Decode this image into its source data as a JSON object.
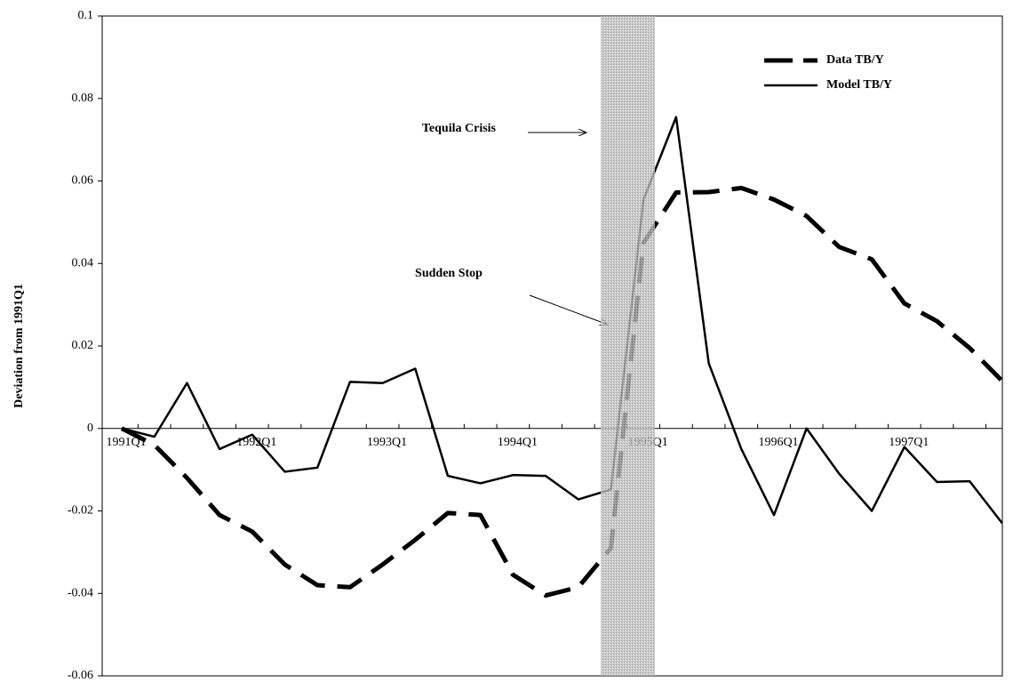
{
  "chart_data": {
    "type": "line",
    "y_label": "Deviation from 1991Q1",
    "categories": [
      "1991Q1",
      null,
      null,
      null,
      "1992Q1",
      null,
      null,
      null,
      "1993Q1",
      null,
      null,
      null,
      "1994Q1",
      null,
      null,
      null,
      "1995Q1",
      null,
      null,
      null,
      "1996Q1",
      null,
      null,
      null,
      "1997Q1",
      null,
      null,
      null
    ],
    "series": [
      {
        "name": "Data TB/Y",
        "color": "#000000",
        "style": "dashed",
        "values": [
          0,
          -0.004,
          -0.012,
          -0.021,
          -0.025,
          -0.033,
          -0.038,
          -0.0385,
          -0.033,
          -0.027,
          -0.0205,
          -0.021,
          -0.0355,
          -0.0405,
          -0.0385,
          -0.029,
          0.045,
          0.0572,
          0.0573,
          0.0583,
          0.0555,
          0.0515,
          0.044,
          0.041,
          0.0303,
          0.026,
          0.0195,
          0.0115
        ]
      },
      {
        "name": "Model TB/Y",
        "color": "#000000",
        "style": "solid",
        "values": [
          0,
          -0.002,
          0.011,
          -0.005,
          -0.0015,
          -0.0105,
          -0.0095,
          0.0113,
          0.011,
          0.0145,
          -0.0115,
          -0.0133,
          -0.0113,
          -0.0115,
          -0.0172,
          -0.0148,
          0.0555,
          0.0755,
          0.0158,
          -0.005,
          -0.021,
          0,
          -0.011,
          -0.02,
          -0.0045,
          -0.013,
          -0.0128,
          -0.023
        ]
      }
    ],
    "ylim": [
      -0.06,
      0.1
    ],
    "yticks": [
      -0.06,
      -0.04,
      -0.02,
      0,
      0.02,
      0.04,
      0.06,
      0.08,
      0.1
    ],
    "grid": false,
    "legend": "top-right",
    "annotations": [
      "Tequila Crisis",
      "Sudden Stop"
    ]
  }
}
